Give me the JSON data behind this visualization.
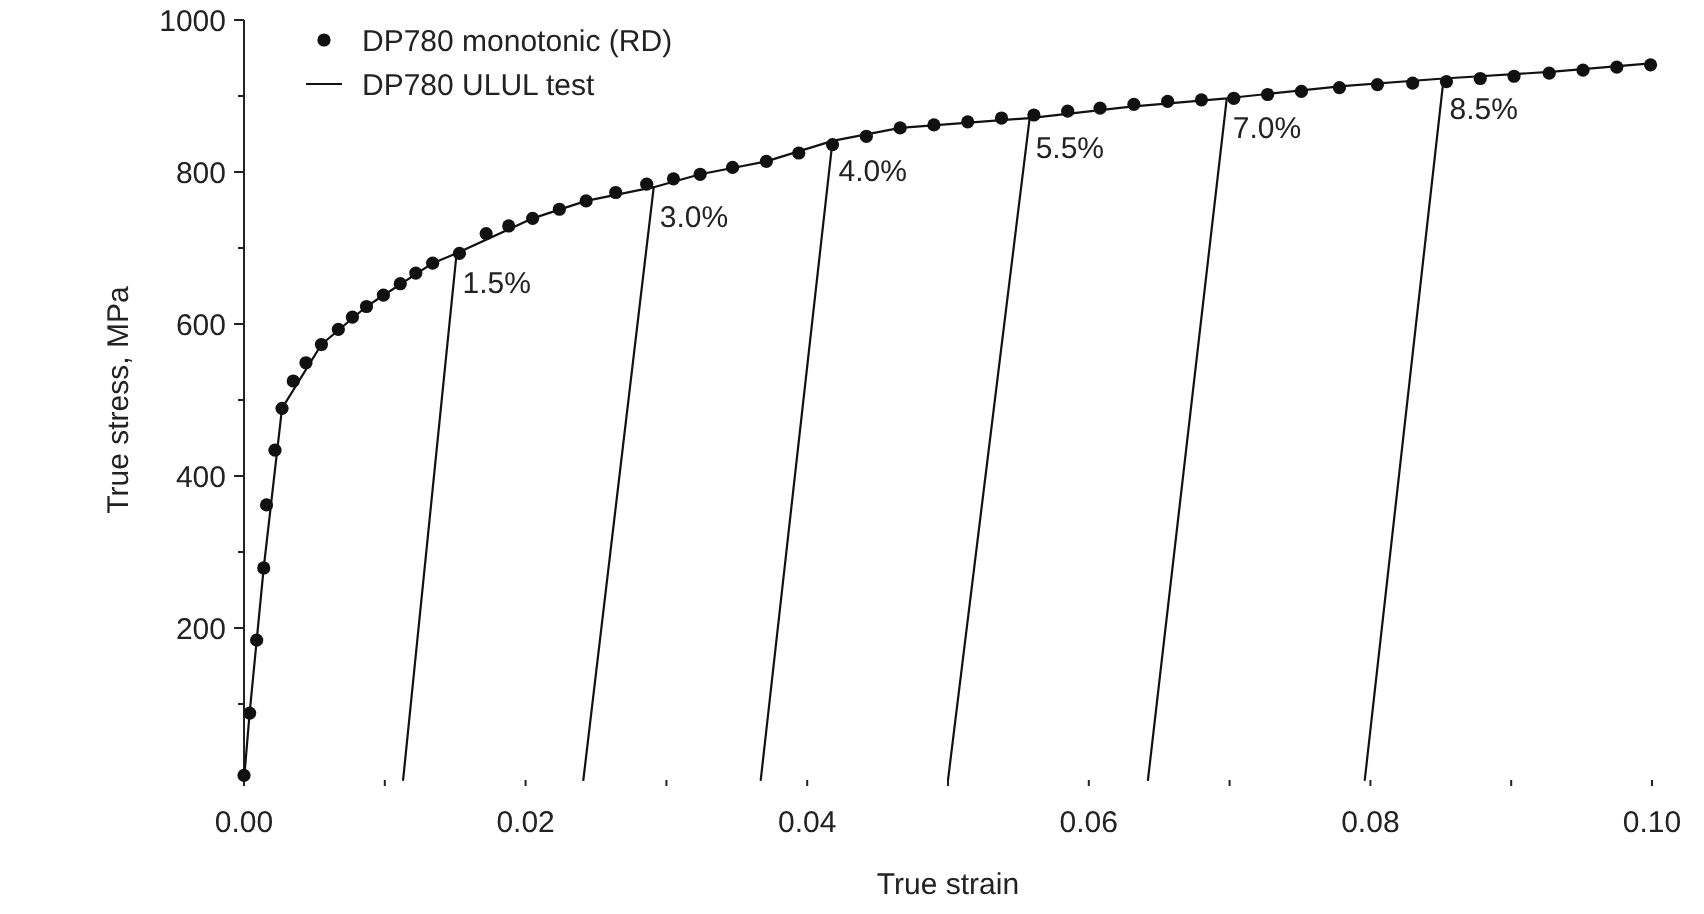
{
  "chart_data": {
    "type": "line",
    "xlabel": "True strain",
    "ylabel": "True stress, MPa",
    "xlim": [
      0,
      0.1
    ],
    "ylim": [
      0,
      1000
    ],
    "xticks": [
      {
        "value": 0,
        "label": "0.00"
      },
      {
        "value": 0.01,
        "label": null
      },
      {
        "value": 0.02,
        "label": "0.02"
      },
      {
        "value": 0.03,
        "label": null
      },
      {
        "value": 0.04,
        "label": "0.04"
      },
      {
        "value": 0.05,
        "label": null
      },
      {
        "value": 0.06,
        "label": "0.06"
      },
      {
        "value": 0.07,
        "label": null
      },
      {
        "value": 0.08,
        "label": "0.08"
      },
      {
        "value": 0.09,
        "label": null
      },
      {
        "value": 0.1,
        "label": "0.10"
      }
    ],
    "yticks": [
      {
        "value": 100,
        "label": null
      },
      200,
      {
        "value": 300,
        "label": null
      },
      400,
      {
        "value": 500,
        "label": null
      },
      600,
      {
        "value": 700,
        "label": null
      },
      800,
      {
        "value": 900,
        "label": null
      },
      1000
    ],
    "legend": "top left",
    "grid": false,
    "series": [
      {
        "name": "DP780 monotonic (RD)",
        "type": "scatter",
        "marker": "circle",
        "color": "#111111",
        "x": [
          0,
          0.0004,
          0.0009,
          0.0014,
          0.0016,
          0.0022,
          0.0027,
          0.0035,
          0.0044,
          0.0055,
          0.0067,
          0.0077,
          0.0087,
          0.0099,
          0.0111,
          0.0122,
          0.0134,
          0.0153,
          0.0172,
          0.0188,
          0.0205,
          0.0224,
          0.0243,
          0.0264,
          0.0286,
          0.0305,
          0.0324,
          0.0347,
          0.0371,
          0.0394,
          0.0418,
          0.0442,
          0.0466,
          0.049,
          0.0514,
          0.0538,
          0.0561,
          0.0585,
          0.0608,
          0.0632,
          0.0656,
          0.068,
          0.0703,
          0.0727,
          0.0751,
          0.0778,
          0.0805,
          0.083,
          0.0854,
          0.0878,
          0.0902,
          0.0927,
          0.0951,
          0.0975,
          0.0999
        ],
        "values": [
          6,
          88,
          184,
          279,
          362,
          434,
          489,
          525,
          549,
          573,
          593,
          609,
          623,
          638,
          653,
          667,
          680,
          693,
          719,
          729,
          739,
          751,
          762,
          773,
          784,
          791,
          797,
          806,
          814,
          825,
          836,
          847,
          858,
          862,
          866,
          871,
          875,
          880,
          884,
          889,
          893,
          895,
          897,
          902,
          906,
          911,
          915,
          917,
          919,
          923,
          926,
          930,
          934,
          938,
          941
        ]
      },
      {
        "name": "DP780 ULUL test",
        "marker": "none",
        "line_style": "solid",
        "color": "#111111",
        "x": [
          0,
          0.0004,
          0.0014,
          0.0027,
          0.0055,
          0.0087,
          0.0134,
          0.0151,
          0.0113,
          0.0151,
          0.0205,
          0.0243,
          0.0291,
          0.0241,
          0.0291,
          0.0324,
          0.0371,
          0.0418,
          0.0367,
          0.0418,
          0.0466,
          0.0558,
          0.05,
          0.0558,
          0.063,
          0.0698,
          0.0642,
          0.0698,
          0.078,
          0.0852,
          0.0796,
          0.0852,
          0.093,
          0.0999
        ],
        "values": [
          0,
          88,
          279,
          489,
          573,
          623,
          680,
          693,
          0,
          693,
          739,
          762,
          780,
          0,
          780,
          797,
          814,
          841,
          0,
          841,
          858,
          871,
          0,
          871,
          886,
          897,
          0,
          897,
          913,
          923,
          0,
          923,
          932,
          943
        ]
      }
    ],
    "annotations": [
      {
        "text": "1.5%",
        "x": 0.0151,
        "y": 693
      },
      {
        "text": "3.0%",
        "x": 0.0291,
        "y": 780
      },
      {
        "text": "4.0%",
        "x": 0.0418,
        "y": 841
      },
      {
        "text": "5.5%",
        "x": 0.0558,
        "y": 871
      },
      {
        "text": "7.0%",
        "x": 0.0698,
        "y": 897
      },
      {
        "text": "8.5%",
        "x": 0.0852,
        "y": 923
      }
    ]
  }
}
